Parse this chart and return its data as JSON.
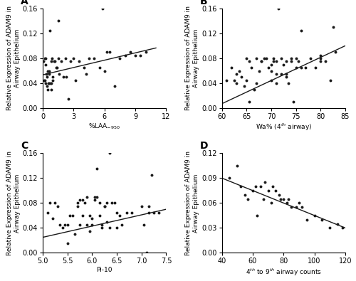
{
  "panel_A": {
    "label": "A",
    "xlabel": "%LAAₙ₅₀",
    "ylabel": "Relative Expression of ADAM9 in\nAirway Epithelium",
    "xlim": [
      0,
      12
    ],
    "ylim": [
      0,
      0.16
    ],
    "xticks": [
      0,
      3,
      6,
      9,
      12
    ],
    "yticks": [
      0.0,
      0.04,
      0.08,
      0.12,
      0.16
    ],
    "x": [
      0.1,
      0.2,
      0.2,
      0.3,
      0.3,
      0.4,
      0.4,
      0.5,
      0.5,
      0.6,
      0.6,
      0.7,
      0.8,
      0.8,
      0.9,
      1.0,
      1.0,
      1.1,
      1.2,
      1.3,
      1.4,
      1.5,
      1.6,
      1.8,
      2.0,
      2.2,
      2.5,
      2.7,
      3.0,
      3.5,
      4.0,
      4.2,
      4.5,
      5.0,
      5.5,
      5.8,
      6.0,
      6.2,
      6.5,
      7.0,
      7.5,
      8.0,
      8.5,
      9.0,
      9.5,
      10.0,
      0.15,
      0.25,
      0.35,
      0.55,
      0.65,
      0.75,
      0.85,
      1.5,
      2.3,
      3.2
    ],
    "y": [
      0.075,
      0.08,
      0.045,
      0.07,
      0.04,
      0.05,
      0.035,
      0.06,
      0.03,
      0.055,
      0.04,
      0.125,
      0.075,
      0.03,
      0.08,
      0.05,
      0.045,
      0.075,
      0.075,
      0.065,
      0.065,
      0.14,
      0.055,
      0.075,
      0.05,
      0.08,
      0.015,
      0.075,
      0.08,
      0.075,
      0.065,
      0.055,
      0.08,
      0.08,
      0.065,
      0.16,
      0.06,
      0.09,
      0.09,
      0.035,
      0.08,
      0.085,
      0.09,
      0.085,
      0.085,
      0.09,
      0.045,
      0.08,
      0.055,
      0.04,
      0.06,
      0.04,
      0.04,
      0.08,
      0.05,
      0.045
    ],
    "slope": 0.00392,
    "intercept": 0.0535,
    "line_x": [
      0,
      11
    ]
  },
  "panel_B": {
    "label": "B",
    "xlabel": "Wa% (4ᵗʰ airway)",
    "ylabel": "Relative Expression of ADAM9 in\nAirway Epithelium",
    "xlim": [
      60,
      85
    ],
    "ylim": [
      0,
      0.16
    ],
    "xticks": [
      60,
      65,
      70,
      75,
      80,
      85
    ],
    "yticks": [
      0.0,
      0.04,
      0.08,
      0.12,
      0.16
    ],
    "x": [
      61,
      62,
      62.5,
      63,
      63.5,
      64,
      64.5,
      65,
      65.5,
      65.5,
      66,
      66.5,
      67,
      67,
      67.5,
      68,
      68.5,
      69,
      69.5,
      70,
      70,
      70.5,
      70.5,
      71,
      71,
      71.5,
      72,
      72,
      72.5,
      73,
      73,
      73.5,
      74,
      74.5,
      75,
      75,
      75.5,
      76,
      77,
      78,
      79,
      80,
      80,
      81,
      82,
      82.5,
      63,
      65,
      68,
      70,
      71,
      73,
      74,
      76,
      80,
      83
    ],
    "y": [
      0.045,
      0.065,
      0.045,
      0.04,
      0.06,
      0.05,
      0.035,
      0.045,
      0.01,
      0.075,
      0.065,
      0.03,
      0.08,
      0.04,
      0.06,
      0.075,
      0.08,
      0.08,
      0.065,
      0.07,
      0.045,
      0.075,
      0.08,
      0.075,
      0.04,
      0.16,
      0.055,
      0.08,
      0.07,
      0.075,
      0.05,
      0.04,
      0.08,
      0.01,
      0.065,
      0.08,
      0.075,
      0.065,
      0.065,
      0.08,
      0.065,
      0.075,
      0.08,
      0.075,
      0.045,
      0.13,
      0.055,
      0.08,
      0.075,
      0.06,
      0.055,
      0.055,
      0.075,
      0.125,
      0.085,
      0.09
    ],
    "slope": 0.00372,
    "intercept": -0.216,
    "line_x": [
      60,
      85
    ]
  },
  "panel_C": {
    "label": "C",
    "xlabel": "Pi-10",
    "ylabel": "Relative Expression of ADAM9 in\nAirway Epithelium",
    "xlim": [
      5.0,
      7.5
    ],
    "ylim": [
      0,
      0.16
    ],
    "xticks": [
      5.0,
      5.5,
      6.0,
      6.5,
      7.0,
      7.5
    ],
    "yticks": [
      0.0,
      0.04,
      0.08,
      0.12,
      0.16
    ],
    "x": [
      5.1,
      5.15,
      5.2,
      5.3,
      5.35,
      5.4,
      5.5,
      5.5,
      5.55,
      5.6,
      5.7,
      5.7,
      5.75,
      5.8,
      5.8,
      5.85,
      5.9,
      5.9,
      5.95,
      6.0,
      6.0,
      6.05,
      6.1,
      6.1,
      6.15,
      6.15,
      6.2,
      6.2,
      6.25,
      6.3,
      6.3,
      6.35,
      6.4,
      6.5,
      6.5,
      6.6,
      6.7,
      6.8,
      7.0,
      7.1,
      7.15,
      7.2,
      5.45,
      5.65,
      5.75,
      5.95,
      6.05,
      6.25,
      6.45,
      6.55,
      7.05,
      7.15,
      7.25,
      7.35,
      5.25,
      6.35
    ],
    "y": [
      0.065,
      0.08,
      0.055,
      0.075,
      0.045,
      0.04,
      0.045,
      0.015,
      0.06,
      0.06,
      0.08,
      0.075,
      0.085,
      0.085,
      0.06,
      0.08,
      0.09,
      0.045,
      0.06,
      0.045,
      0.055,
      0.085,
      0.09,
      0.135,
      0.06,
      0.08,
      0.04,
      0.045,
      0.075,
      0.08,
      0.05,
      0.16,
      0.08,
      0.04,
      0.065,
      0.045,
      0.065,
      0.065,
      0.075,
      0.0,
      0.065,
      0.125,
      0.045,
      0.03,
      0.045,
      0.035,
      0.09,
      0.075,
      0.08,
      0.06,
      0.045,
      0.075,
      0.065,
      0.065,
      0.08,
      0.04
    ],
    "slope": 0.018,
    "intercept": -0.065,
    "line_x": [
      5.0,
      7.5
    ]
  },
  "panel_D": {
    "label": "D",
    "xlabel": "4ᵗʰ to 9ᵗʰ airway counts",
    "ylabel": "Relative Expression of ADAM9 in\nAirway Epithelium",
    "xlim": [
      40,
      120
    ],
    "ylim": [
      0,
      0.12
    ],
    "xticks": [
      40,
      60,
      80,
      100,
      120
    ],
    "yticks": [
      0.0,
      0.03,
      0.06,
      0.09,
      0.12
    ],
    "x": [
      45,
      50,
      52,
      55,
      57,
      60,
      62,
      65,
      67,
      68,
      70,
      72,
      73,
      75,
      77,
      78,
      80,
      82,
      85,
      88,
      90,
      92,
      95,
      100,
      105,
      110,
      115,
      118,
      63,
      83
    ],
    "y": [
      0.09,
      0.105,
      0.08,
      0.07,
      0.065,
      0.075,
      0.08,
      0.08,
      0.065,
      0.085,
      0.075,
      0.06,
      0.08,
      0.075,
      0.07,
      0.065,
      0.065,
      0.06,
      0.055,
      0.055,
      0.06,
      0.055,
      0.04,
      0.045,
      0.04,
      0.03,
      0.035,
      0.03,
      0.045,
      0.065
    ],
    "slope": -0.00075,
    "intercept": 0.12,
    "line_x": [
      40,
      120
    ]
  },
  "dot_color": "#1a1a1a",
  "line_color": "#1a1a1a",
  "dot_size": 8,
  "bg_color": "#ffffff",
  "font_size_label": 6.5,
  "font_size_tick": 7,
  "font_size_panel": 10
}
